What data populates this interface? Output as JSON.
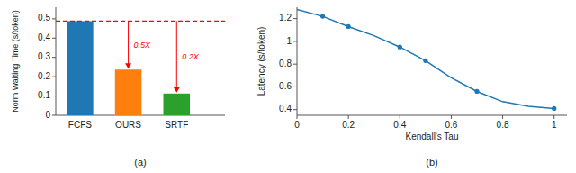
{
  "chart_data": [
    {
      "type": "bar",
      "categories": [
        "FCFS",
        "OURS",
        "SRTF"
      ],
      "values": [
        0.488,
        0.237,
        0.113
      ],
      "colors": [
        "#1f77b4",
        "#ff7f0e",
        "#2ca02c"
      ],
      "ylabel": "Norm Waiting Time (s/token)",
      "ylim": [
        0.0,
        0.56
      ],
      "yticks": [
        0,
        0.1,
        0.2,
        0.3,
        0.4,
        0.5
      ],
      "grid": false,
      "reference_line": {
        "value": 0.488,
        "color": "red",
        "line_style": "dashed"
      },
      "annotations": [
        {
          "text": "0.5X",
          "category": "OURS"
        },
        {
          "text": "0.2X",
          "category": "SRTF"
        }
      ],
      "caption": "(a)"
    },
    {
      "type": "line",
      "series": [
        {
          "type": "line",
          "marker": "none",
          "color": "#1f77b4",
          "x": [
            0.0,
            0.1,
            0.2,
            0.3,
            0.4,
            0.5,
            0.6,
            0.7,
            0.8,
            0.9,
            1.0
          ],
          "values": [
            1.28,
            1.22,
            1.13,
            1.05,
            0.95,
            0.83,
            0.68,
            0.56,
            0.47,
            0.43,
            0.41
          ]
        },
        {
          "type": "scatter",
          "marker": "circle",
          "color": "#1f77b4",
          "x": [
            0.1,
            0.2,
            0.4,
            0.5,
            0.7,
            1.0
          ],
          "values": [
            1.22,
            1.13,
            0.95,
            0.83,
            0.56,
            0.41
          ]
        }
      ],
      "xlabel": "Kendall's Tau",
      "ylabel": "Latency (s/token)",
      "xlim": [
        0.0,
        1.05
      ],
      "xticks": [
        0.0,
        0.2,
        0.4,
        0.6,
        0.8,
        1.0
      ],
      "ylim": [
        0.35,
        1.3
      ],
      "yticks": [
        0.4,
        0.6,
        0.8,
        1.0,
        1.2
      ],
      "grid": false,
      "caption": "(b)"
    }
  ]
}
